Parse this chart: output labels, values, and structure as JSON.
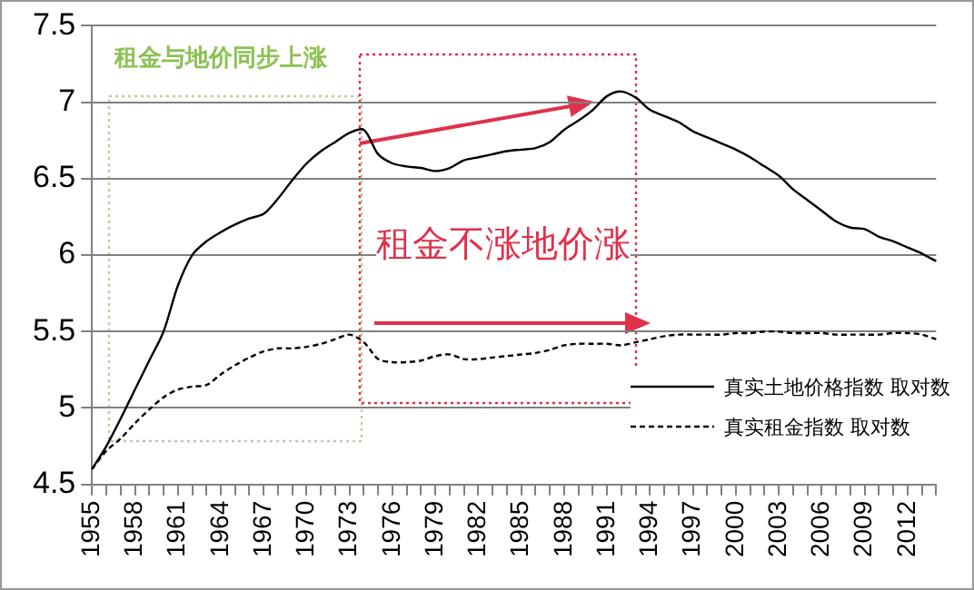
{
  "chart_data": {
    "type": "line",
    "categories": [
      "1955",
      null,
      null,
      "1958",
      null,
      null,
      "1961",
      null,
      null,
      "1964",
      null,
      null,
      "1967",
      null,
      null,
      "1970",
      null,
      null,
      "1973",
      null,
      null,
      "1976",
      null,
      null,
      "1979",
      null,
      null,
      "1982",
      null,
      null,
      "1985",
      null,
      null,
      "1988",
      null,
      null,
      "1991",
      null,
      null,
      "1994",
      null,
      null,
      "1997",
      null,
      null,
      "2000",
      null,
      null,
      "2003",
      null,
      null,
      "2006",
      null,
      null,
      "2009",
      null,
      null,
      "2012",
      null,
      null
    ],
    "series": [
      {
        "name": "真实土地价格指数 取对数",
        "color": "#000000",
        "line_style": "solid",
        "values": [
          4.6,
          4.75,
          4.93,
          5.12,
          5.31,
          5.5,
          5.8,
          6.0,
          6.09,
          6.15,
          6.2,
          6.24,
          6.27,
          6.37,
          6.49,
          6.6,
          6.68,
          6.74,
          6.8,
          6.82,
          6.66,
          6.6,
          6.58,
          6.57,
          6.55,
          6.57,
          6.62,
          6.64,
          6.66,
          6.68,
          6.69,
          6.7,
          6.74,
          6.82,
          6.88,
          6.95,
          7.04,
          7.07,
          7.03,
          6.95,
          6.91,
          6.87,
          6.81,
          6.77,
          6.73,
          6.69,
          6.64,
          6.58,
          6.52,
          6.43,
          6.36,
          6.29,
          6.22,
          6.18,
          6.17,
          6.12,
          6.09,
          6.05,
          6.01,
          5.96
        ]
      },
      {
        "name": "真实租金指数 取对数",
        "color": "#000000",
        "line_style": "dashed",
        "values": [
          4.6,
          4.72,
          4.8,
          4.9,
          4.99,
          5.07,
          5.12,
          5.14,
          5.15,
          5.22,
          5.28,
          5.33,
          5.37,
          5.39,
          5.39,
          5.4,
          5.42,
          5.45,
          5.48,
          5.43,
          5.32,
          5.3,
          5.3,
          5.31,
          5.34,
          5.35,
          5.32,
          5.32,
          5.33,
          5.34,
          5.35,
          5.36,
          5.38,
          5.41,
          5.42,
          5.42,
          5.42,
          5.41,
          5.43,
          5.45,
          5.47,
          5.48,
          5.48,
          5.48,
          5.48,
          5.49,
          5.49,
          5.5,
          5.5,
          5.49,
          5.49,
          5.49,
          5.48,
          5.48,
          5.48,
          5.48,
          5.49,
          5.49,
          5.48,
          5.45
        ]
      }
    ],
    "ylim": [
      4.5,
      7.5
    ],
    "yticks": [
      4.5,
      5,
      5.5,
      6,
      6.5,
      7,
      7.5
    ],
    "grid": "y",
    "legend": "bottom right",
    "marker": "none",
    "annotations": [
      "租金与地价同步上涨",
      "租金不涨地价涨"
    ]
  }
}
